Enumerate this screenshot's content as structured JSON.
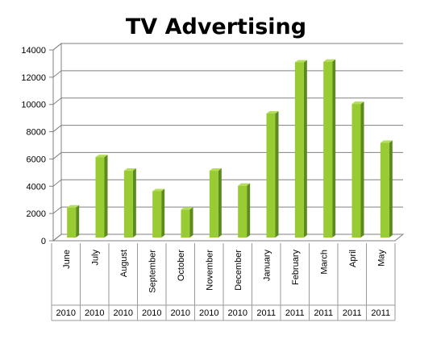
{
  "chart_data": {
    "type": "bar",
    "title": "TV Advertising",
    "xlabel": "",
    "ylabel": "",
    "categories": [
      "June",
      "July",
      "August",
      "September",
      "October",
      "November",
      "December",
      "January",
      "February",
      "March",
      "April",
      "May"
    ],
    "years": [
      "2010",
      "2010",
      "2010",
      "2010",
      "2010",
      "2010",
      "2010",
      "2011",
      "2011",
      "2011",
      "2011",
      "2011"
    ],
    "values": [
      2200,
      5900,
      4900,
      3400,
      2050,
      4900,
      3800,
      9100,
      12850,
      12900,
      9800,
      6950
    ],
    "ylim": [
      0,
      14000
    ],
    "yticks": [
      "0",
      "2000",
      "4000",
      "6000",
      "8000",
      "10000",
      "12000",
      "14000"
    ],
    "grid": true,
    "legend": "none",
    "colors": {
      "bar_front": "#99cc33",
      "bar_side": "#5c8a1e",
      "bar_top": "#b5dc5c",
      "grid": "#808080"
    }
  }
}
